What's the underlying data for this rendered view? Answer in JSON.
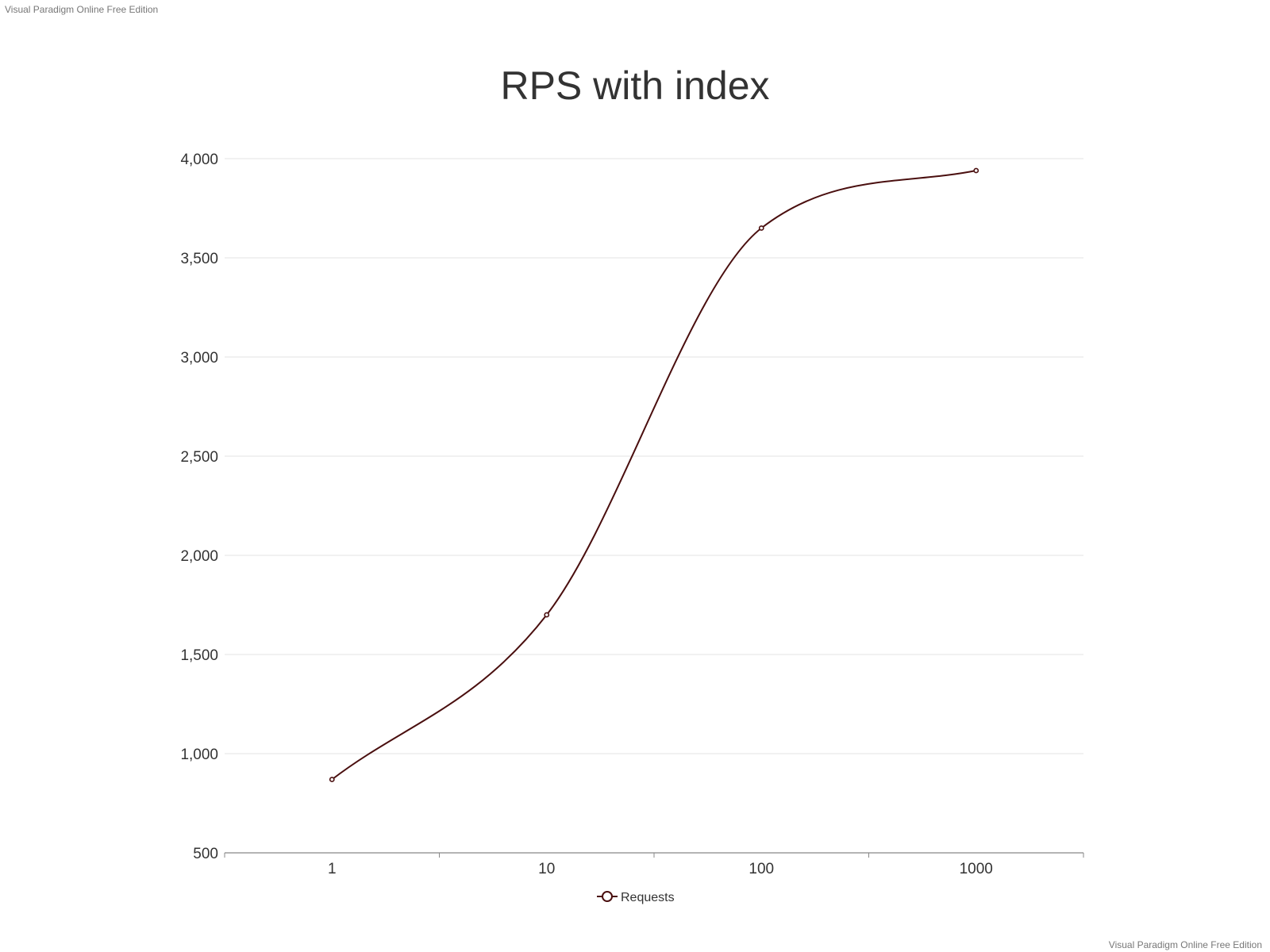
{
  "watermark": {
    "top": "Visual Paradigm Online Free Edition",
    "bottom": "Visual Paradigm Online Free Edition"
  },
  "chart_data": {
    "type": "line",
    "title": "RPS with index",
    "xlabel": "",
    "ylabel": "",
    "x_scale": "log",
    "x": [
      1,
      10,
      100,
      1000
    ],
    "x_tick_labels": [
      "1",
      "10",
      "100",
      "1000"
    ],
    "series": [
      {
        "name": "Requests",
        "values": [
          870,
          1700,
          3650,
          3940
        ],
        "color": "#4a0f0f"
      }
    ],
    "ylim": [
      500,
      4000
    ],
    "y_ticks": [
      500,
      1000,
      1500,
      2000,
      2500,
      3000,
      3500,
      4000
    ],
    "y_tick_labels": [
      "500",
      "1,000",
      "1,500",
      "2,000",
      "2,500",
      "3,000",
      "3,500",
      "4,000"
    ],
    "grid": true,
    "legend": "bottom",
    "smooth": true
  }
}
